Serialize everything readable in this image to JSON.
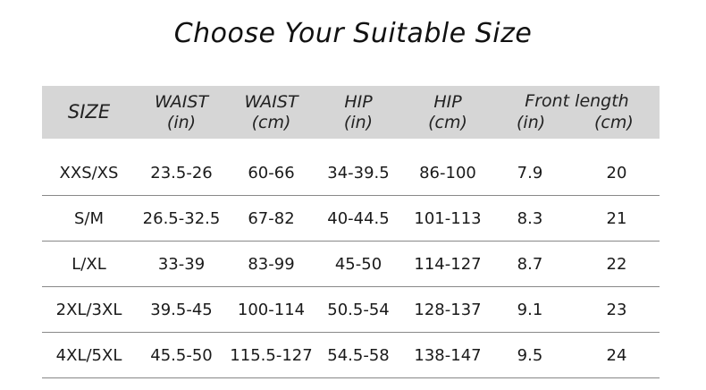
{
  "title": "Choose Your Suitable Size",
  "headers": {
    "size": "SIZE",
    "waist_in": [
      "WAIST",
      "(in)"
    ],
    "waist_cm": [
      "WAIST",
      "(cm)"
    ],
    "hip_in": [
      "HIP",
      "(in)"
    ],
    "hip_cm": [
      "HIP",
      "(cm)"
    ],
    "front_length": "Front length",
    "front_in": "(in)",
    "front_cm": "(cm)"
  },
  "rows": [
    [
      "XXS/XS",
      "23.5-26",
      "60-66",
      "34-39.5",
      "86-100",
      "7.9",
      "20"
    ],
    [
      "S/M",
      "26.5-32.5",
      "67-82",
      "40-44.5",
      "101-113",
      "8.3",
      "21"
    ],
    [
      "L/XL",
      "33-39",
      "83-99",
      "45-50",
      "114-127",
      "8.7",
      "22"
    ],
    [
      "2XL/3XL",
      "39.5-45",
      "100-114",
      "50.5-54",
      "128-137",
      "9.1",
      "23"
    ],
    [
      "4XL/5XL",
      "45.5-50",
      "115.5-127",
      "54.5-58",
      "138-147",
      "9.5",
      "24"
    ]
  ]
}
